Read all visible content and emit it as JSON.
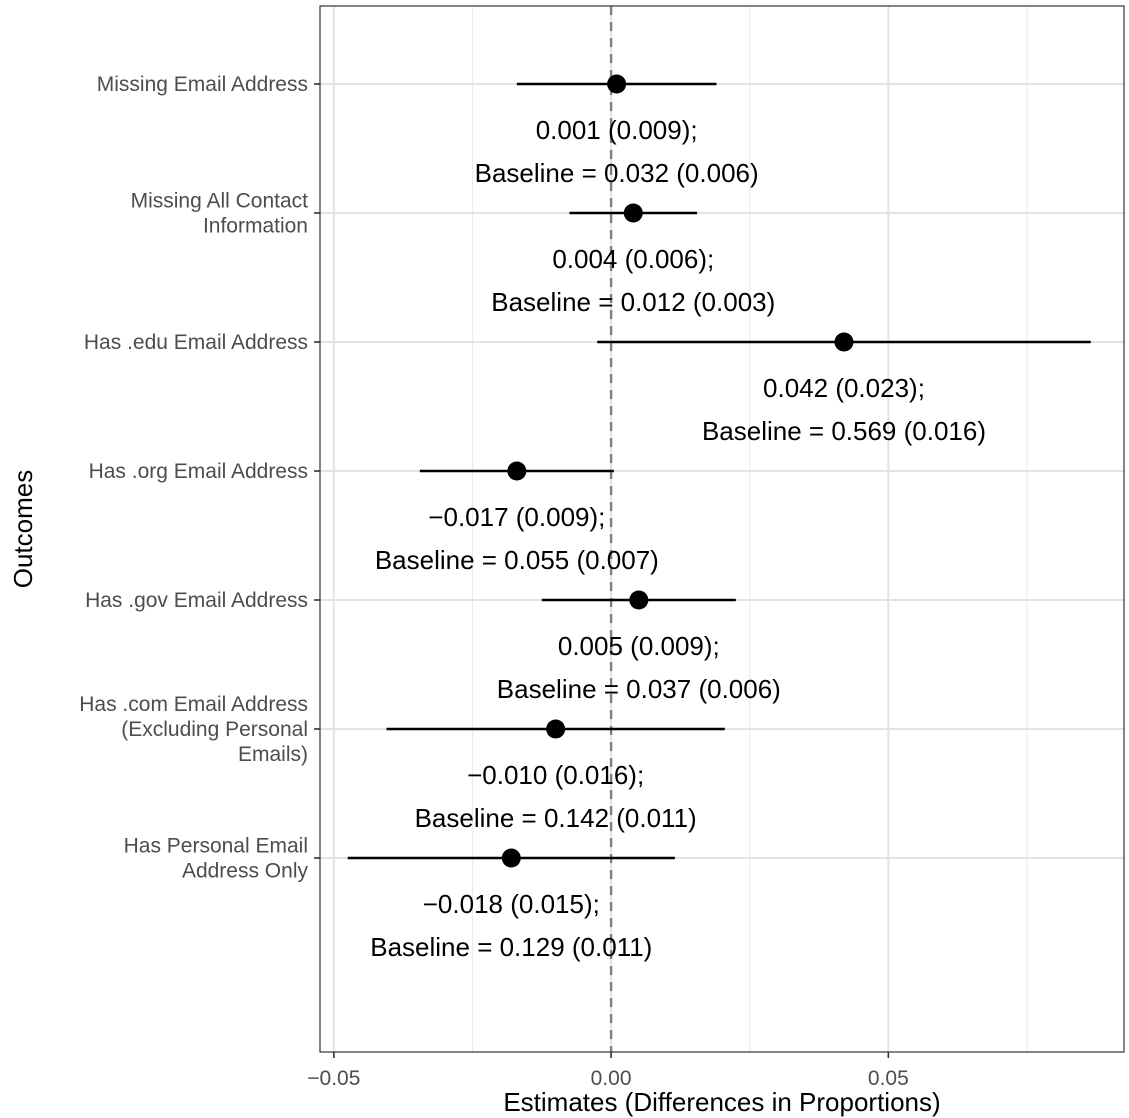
{
  "chart_data": {
    "type": "scatter",
    "xlabel": "Estimates (Differences in Proportions)",
    "ylabel": "Outcomes",
    "xlim": [
      -0.0525,
      0.0925
    ],
    "x_ticks": [
      {
        "value": -0.05,
        "label": "−0.05"
      },
      {
        "value": 0.0,
        "label": "0.00"
      },
      {
        "value": 0.05,
        "label": "0.05"
      }
    ],
    "x_minor_gridlines": [
      -0.025,
      0.025,
      0.075
    ],
    "reference_line": {
      "x": 0.0,
      "style": "dashed"
    },
    "grid": true,
    "rows": [
      {
        "label_lines": [
          "Missing Email Address"
        ],
        "estimate": 0.001,
        "ci_low": -0.017,
        "ci_high": 0.019,
        "annotation_lines": [
          "0.001 (0.009);",
          "Baseline = 0.032 (0.006)"
        ]
      },
      {
        "label_lines": [
          "Missing All Contact",
          "Information"
        ],
        "estimate": 0.004,
        "ci_low": -0.0075,
        "ci_high": 0.0155,
        "annotation_lines": [
          "0.004 (0.006);",
          "Baseline = 0.012 (0.003)"
        ]
      },
      {
        "label_lines": [
          "Has .edu Email Address"
        ],
        "estimate": 0.042,
        "ci_low": -0.0025,
        "ci_high": 0.0865,
        "annotation_lines": [
          "0.042 (0.023);",
          "Baseline = 0.569 (0.016)"
        ]
      },
      {
        "label_lines": [
          "Has .org Email Address"
        ],
        "estimate": -0.017,
        "ci_low": -0.0345,
        "ci_high": 0.0005,
        "annotation_lines": [
          "−0.017 (0.009);",
          "Baseline = 0.055 (0.007)"
        ]
      },
      {
        "label_lines": [
          "Has .gov Email Address"
        ],
        "estimate": 0.005,
        "ci_low": -0.0125,
        "ci_high": 0.0225,
        "annotation_lines": [
          "0.005 (0.009);",
          "Baseline = 0.037 (0.006)"
        ]
      },
      {
        "label_lines": [
          "Has .com Email Address",
          "(Excluding Personal",
          "Emails)"
        ],
        "estimate": -0.01,
        "ci_low": -0.0405,
        "ci_high": 0.0205,
        "annotation_lines": [
          "−0.010 (0.016);",
          "Baseline = 0.142 (0.011)"
        ]
      },
      {
        "label_lines": [
          "Has Personal Email",
          "Address Only"
        ],
        "estimate": -0.018,
        "ci_low": -0.0475,
        "ci_high": 0.0115,
        "annotation_lines": [
          "−0.018 (0.015);",
          "Baseline = 0.129 (0.011)"
        ]
      }
    ]
  }
}
